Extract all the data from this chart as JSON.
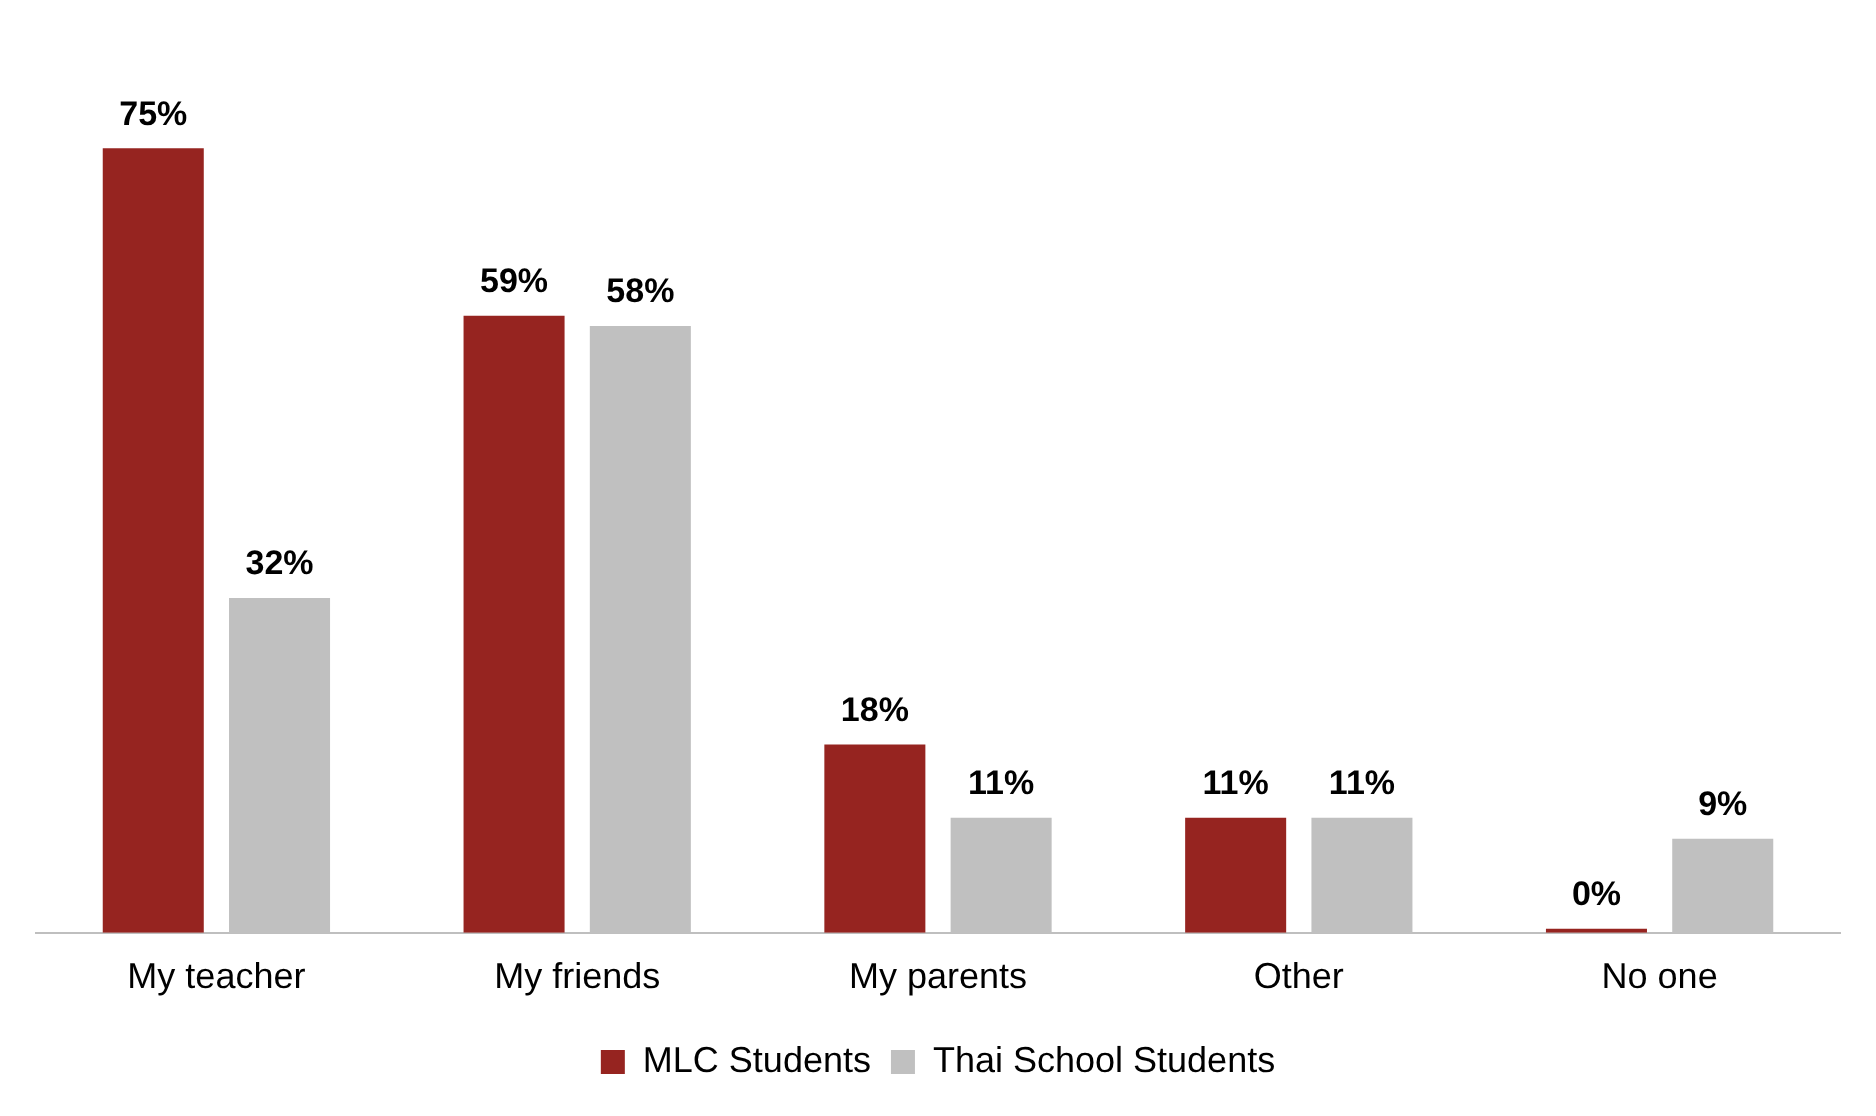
{
  "chart_data": {
    "type": "bar",
    "categories": [
      "My teacher",
      "My friends",
      "My parents",
      "Other",
      "No one"
    ],
    "series": [
      {
        "name": "MLC Students",
        "color": "#962420",
        "values": [
          75,
          59,
          18,
          11,
          0
        ],
        "value_labels": [
          "75%",
          "59%",
          "18%",
          "11%",
          "0%"
        ]
      },
      {
        "name": "Thai School Students",
        "color": "#c0c0c0",
        "values": [
          32,
          58,
          11,
          11,
          9
        ],
        "value_labels": [
          "32%",
          "58%",
          "11%",
          "11%",
          "9%"
        ]
      }
    ],
    "grid": false,
    "legend": "bottom",
    "tick_labels": "x"
  }
}
